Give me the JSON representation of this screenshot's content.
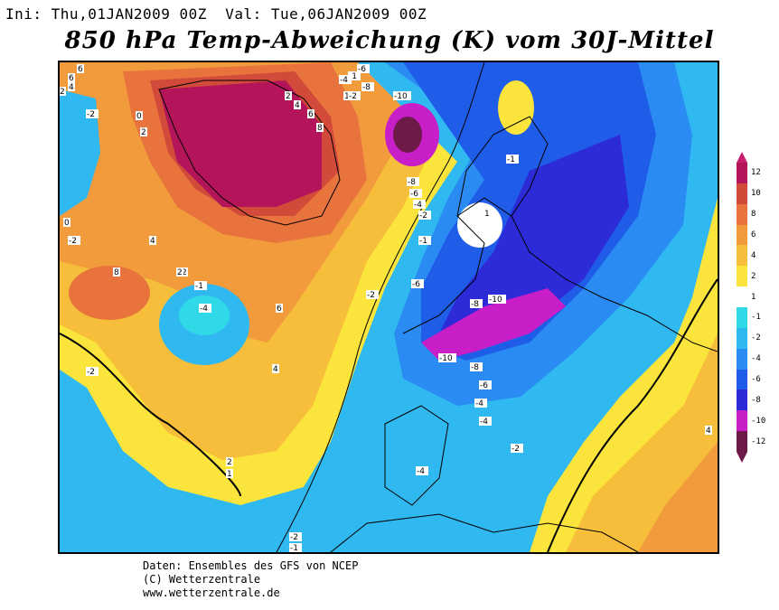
{
  "header": {
    "info_line": "Ini: Thu,01JAN2009 00Z  Val: Tue,06JAN2009 00Z",
    "title": "850 hPa Temp-Abweichung (K) vom 30J-Mittel"
  },
  "legend": {
    "labels": [
      "12",
      "10",
      "8",
      "6",
      "4",
      "2",
      "1",
      "-1",
      "-2",
      "-4",
      "-6",
      "-8",
      "-10",
      "-12"
    ],
    "colors": [
      "#b4145a",
      "#d24a3a",
      "#e8733c",
      "#f29b3c",
      "#f6be3a",
      "#fbe43b",
      "#ffffff",
      "#2fd9e8",
      "#30b8f0",
      "#2a8cf2",
      "#1f5ce8",
      "#2d2ad8",
      "#c81ec8",
      "#6e1a48"
    ]
  },
  "map": {
    "contour_labels": [
      "6",
      "6",
      "4",
      "2",
      "-2",
      "0",
      "2",
      "8",
      "6",
      "4",
      "2",
      "1",
      "-1",
      "-2",
      "-4",
      "-6",
      "-8",
      "-10",
      "-8",
      "-6",
      "-4",
      "-2",
      "-1",
      "1",
      "0",
      "-2",
      "8",
      "4",
      "2",
      "-1",
      "-4",
      "-6",
      "-8",
      "-10",
      "-10",
      "-8",
      "-6",
      "-4",
      "-4",
      "-2",
      "-1",
      "-2",
      "-4",
      "-2",
      "1",
      "2",
      "4",
      "6",
      "2",
      "-2",
      "4",
      "-1"
    ]
  },
  "footer": {
    "line1": "Daten: Ensembles des GFS von NCEP",
    "line2": "(C) Wetterzentrale",
    "line3": "www.wetterzentrale.de"
  }
}
